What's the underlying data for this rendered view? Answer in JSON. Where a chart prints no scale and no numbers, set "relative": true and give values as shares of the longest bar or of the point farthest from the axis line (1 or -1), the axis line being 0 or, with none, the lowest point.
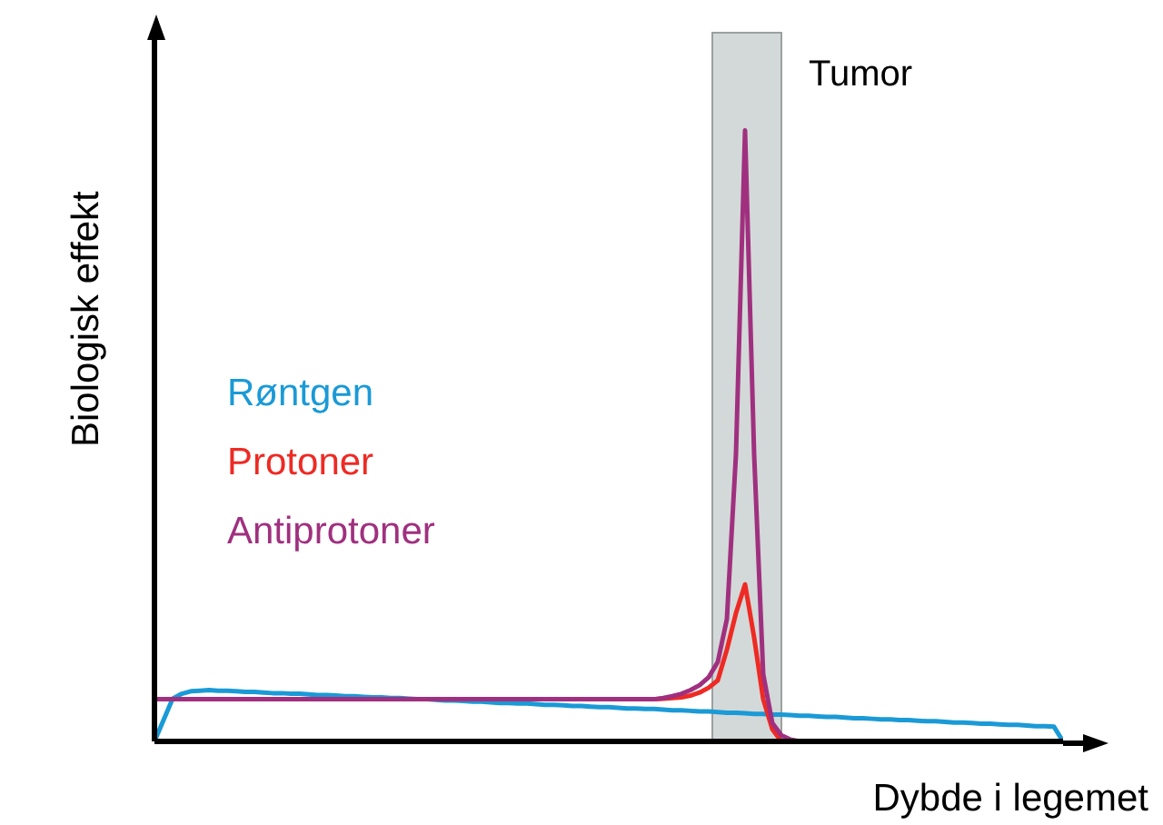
{
  "chart_data": {
    "type": "line",
    "relative": true,
    "xlabel": "Dybde i legemet",
    "ylabel": "Biologisk effekt",
    "grid": false,
    "marker": "none",
    "line_style": "solid",
    "annotations": [
      "Tumor"
    ],
    "categories": [
      null,
      null,
      null,
      null,
      null,
      null,
      null,
      null,
      null,
      null,
      null,
      null,
      null,
      null,
      null,
      null,
      null,
      null,
      null,
      null,
      null,
      null,
      null,
      null,
      null,
      null,
      null,
      null,
      null,
      null,
      null,
      null,
      null,
      null,
      null,
      null,
      null,
      null,
      null,
      null,
      null,
      null,
      null,
      null,
      null,
      null,
      null,
      null,
      null,
      null,
      null,
      null,
      null,
      null,
      null,
      null,
      null,
      null,
      null,
      null,
      null,
      null,
      null,
      null,
      null,
      null,
      null,
      null,
      null,
      null,
      null,
      null,
      null,
      null,
      null,
      null,
      null,
      null,
      null,
      null,
      null,
      null,
      null,
      null,
      null,
      null,
      null,
      null,
      null,
      null,
      null,
      null,
      null,
      null,
      null,
      null,
      null,
      null,
      null,
      null,
      null
    ],
    "series": [
      {
        "name": "Røntgen",
        "color": "#1a9ad6",
        "values": [
          0,
          0.035,
          0.07,
          0.078,
          0.082,
          0.083,
          0.084,
          0.083,
          0.083,
          0.082,
          0.081,
          0.081,
          0.08,
          0.079,
          0.079,
          0.078,
          0.078,
          0.077,
          0.076,
          0.076,
          0.075,
          0.074,
          0.074,
          0.073,
          0.072,
          0.072,
          0.071,
          0.071,
          0.07,
          0.069,
          0.069,
          0.068,
          0.067,
          0.067,
          0.066,
          0.065,
          0.065,
          0.064,
          0.063,
          0.063,
          0.062,
          0.062,
          0.061,
          0.06,
          0.06,
          0.059,
          0.058,
          0.058,
          0.057,
          0.056,
          0.056,
          0.055,
          0.054,
          0.054,
          0.053,
          0.053,
          0.052,
          0.051,
          0.051,
          0.05,
          0.049,
          0.049,
          0.048,
          0.047,
          0.047,
          0.046,
          0.045,
          0.045,
          0.044,
          0.044,
          0.043,
          0.042,
          0.042,
          0.041,
          0.04,
          0.04,
          0.039,
          0.038,
          0.038,
          0.037,
          0.036,
          0.036,
          0.035,
          0.035,
          0.034,
          0.033,
          0.033,
          0.032,
          0.031,
          0.031,
          0.03,
          0.029,
          0.029,
          0.028,
          0.027,
          0.027,
          0.026,
          0.025,
          0.025,
          0.024,
          0
        ]
      },
      {
        "name": "Protoner",
        "color": "#ee2a24",
        "values": [
          null,
          null,
          null,
          null,
          null,
          null,
          null,
          null,
          null,
          null,
          null,
          null,
          null,
          null,
          null,
          null,
          null,
          null,
          null,
          null,
          null,
          null,
          null,
          null,
          null,
          null,
          null,
          null,
          null,
          null,
          null,
          null,
          null,
          null,
          null,
          null,
          null,
          null,
          null,
          null,
          null,
          null,
          null,
          null,
          null,
          null,
          null,
          null,
          null,
          null,
          null,
          null,
          null,
          null,
          0.069,
          0.069,
          0.07,
          0.071,
          0.072,
          0.075,
          0.08,
          0.088,
          0.1,
          0.15,
          0.21,
          0.257,
          0.17,
          0.069,
          0.02,
          0,
          null,
          null,
          null,
          null,
          null,
          null,
          null,
          null,
          null,
          null,
          null,
          null,
          null,
          null,
          null,
          null,
          null,
          null,
          null,
          null,
          null,
          null,
          null,
          null,
          null,
          null,
          null,
          null,
          null,
          null,
          null
        ]
      },
      {
        "name": "Antiprotoner",
        "color": "#a0307f",
        "values": [
          0.069,
          0.069,
          0.069,
          0.069,
          0.069,
          0.069,
          0.069,
          0.069,
          0.069,
          0.069,
          0.069,
          0.069,
          0.069,
          0.069,
          0.069,
          0.069,
          0.069,
          0.069,
          0.069,
          0.069,
          0.069,
          0.069,
          0.069,
          0.069,
          0.069,
          0.069,
          0.069,
          0.069,
          0.069,
          0.069,
          0.069,
          0.069,
          0.069,
          0.069,
          0.069,
          0.069,
          0.069,
          0.069,
          0.069,
          0.069,
          0.069,
          0.069,
          0.069,
          0.069,
          0.069,
          0.069,
          0.069,
          0.069,
          0.069,
          0.069,
          0.069,
          0.069,
          0.069,
          0.069,
          0.069,
          0.069,
          0.071,
          0.074,
          0.078,
          0.084,
          0.092,
          0.105,
          0.13,
          0.2,
          0.47,
          1,
          0.47,
          0.11,
          0.03,
          0.01,
          0.003,
          0,
          null,
          null,
          null,
          null,
          null,
          null,
          null,
          null,
          null,
          null,
          null,
          null,
          null,
          null,
          null,
          null,
          null,
          null,
          null,
          null,
          null,
          null,
          null,
          null,
          null,
          null,
          null,
          null,
          null
        ]
      }
    ]
  }
}
